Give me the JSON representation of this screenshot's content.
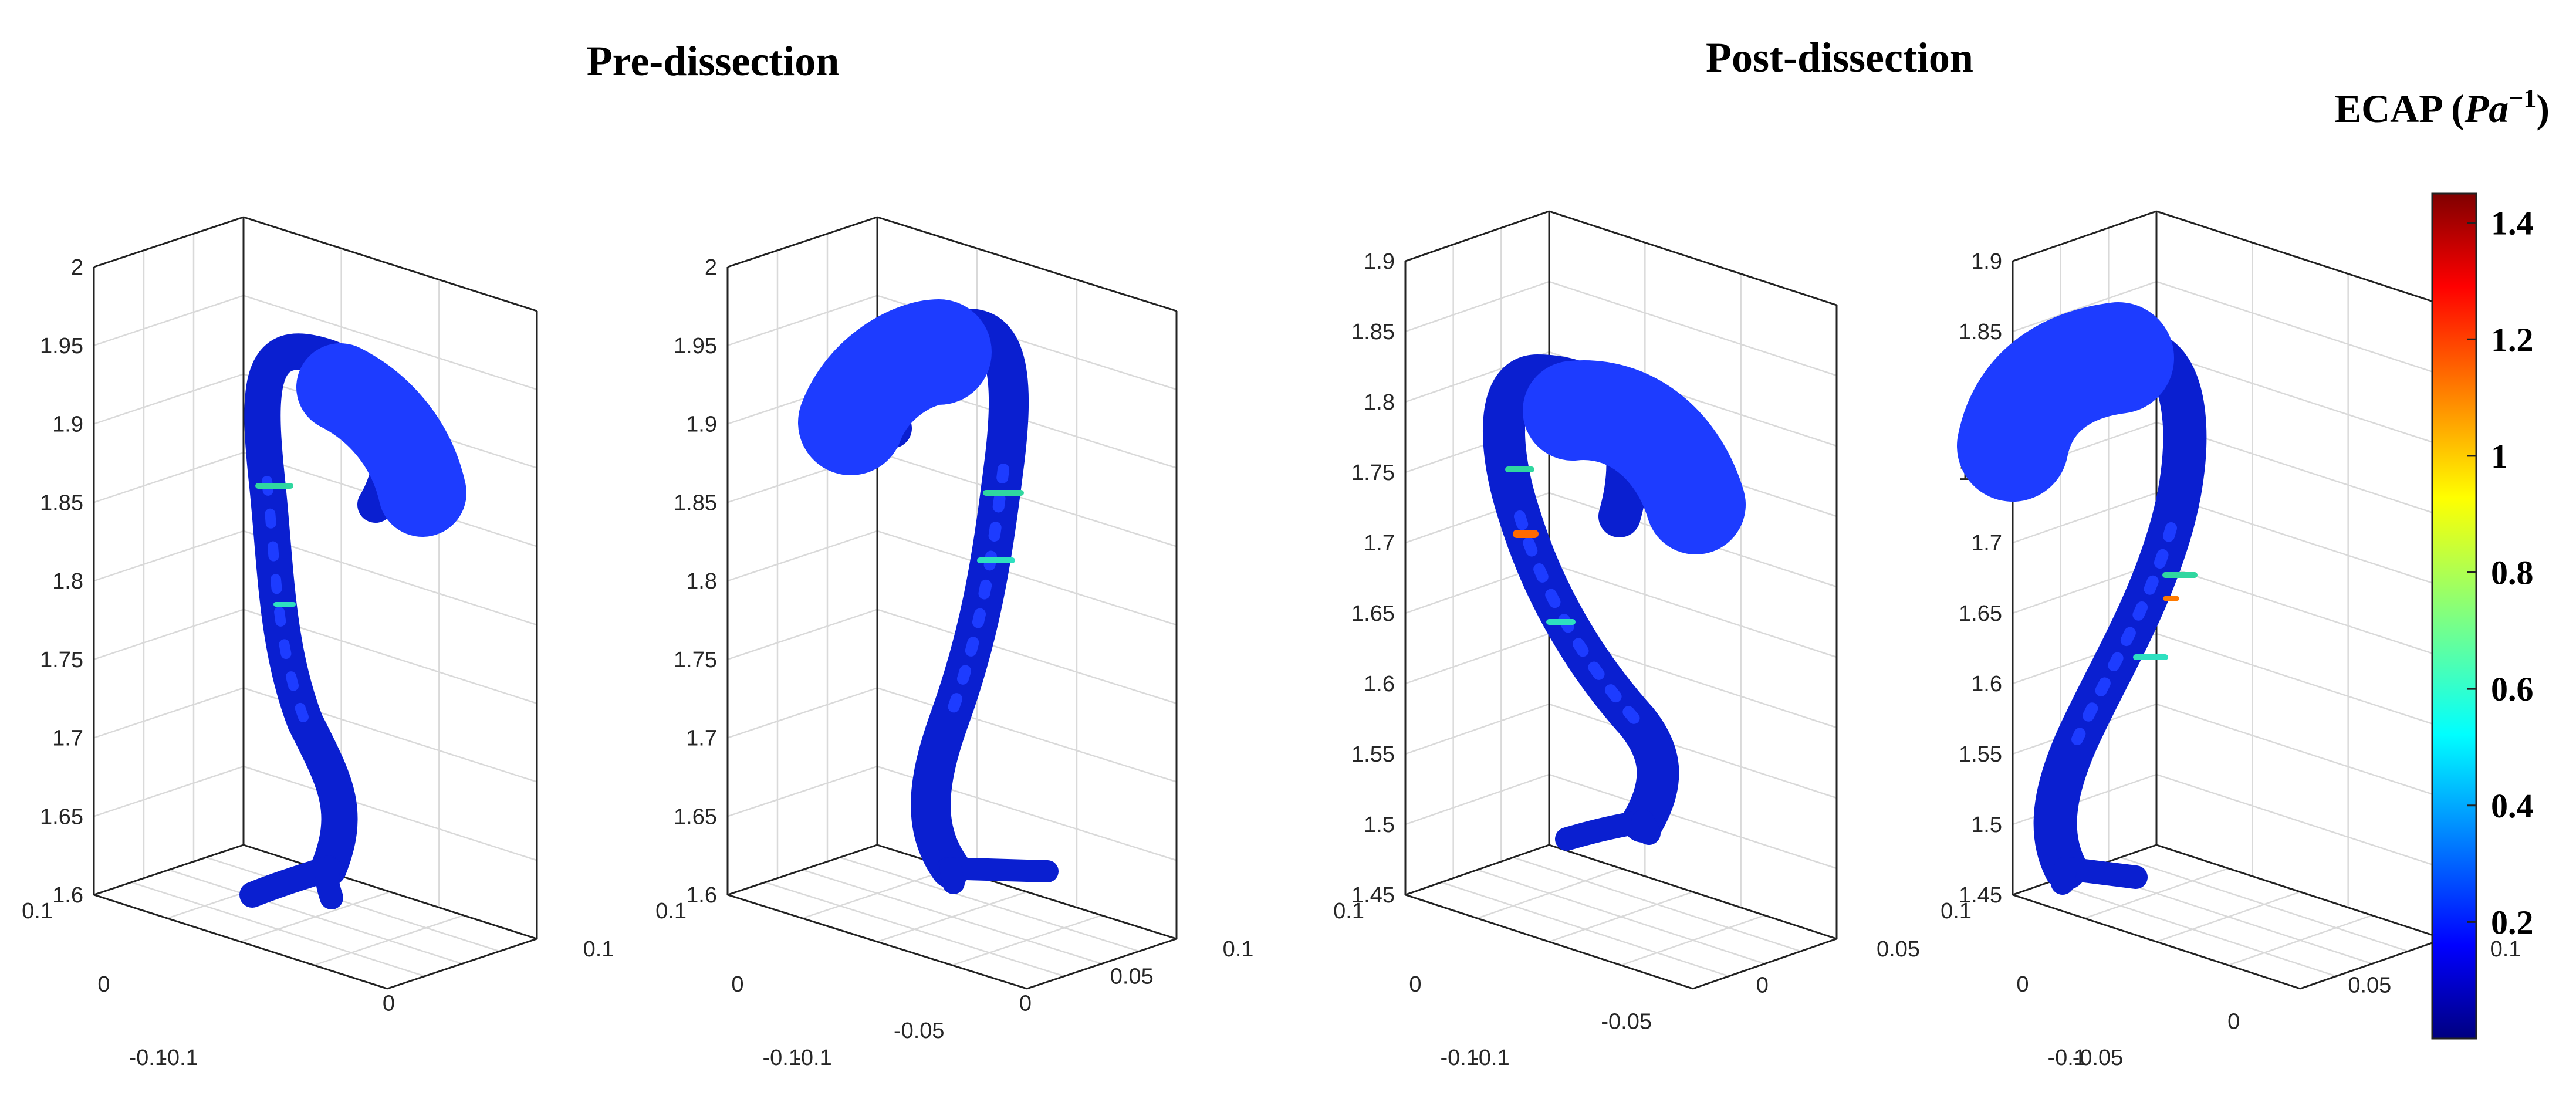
{
  "figure": {
    "titles": {
      "pre": "Pre-dissection",
      "post": "Post-dissection"
    },
    "panels": [
      {
        "z_ticks": [
          "2",
          "1.95",
          "1.9",
          "1.85",
          "1.8",
          "1.75",
          "1.7",
          "1.65",
          "1.6"
        ],
        "y_ticks": [
          "0.1",
          "0",
          "-0.1"
        ],
        "x_ticks": [
          "-0.1",
          "0",
          "0.1"
        ]
      },
      {
        "z_ticks": [
          "2",
          "1.95",
          "1.9",
          "1.85",
          "1.8",
          "1.75",
          "1.7",
          "1.65",
          "1.6"
        ],
        "y_ticks": [
          "0.1",
          "0",
          "-0.1"
        ],
        "x_ticks": [
          "-0.1",
          "-0.05",
          "0",
          "0.05",
          "0.1"
        ]
      },
      {
        "z_ticks": [
          "1.9",
          "1.85",
          "1.8",
          "1.75",
          "1.7",
          "1.65",
          "1.6",
          "1.55",
          "1.5",
          "1.45"
        ],
        "y_ticks": [
          "0.1",
          "0",
          "-0.1"
        ],
        "x_ticks": [
          "-0.1",
          "-0.05",
          "0",
          "0.05"
        ]
      },
      {
        "z_ticks": [
          "1.9",
          "1.85",
          "1.8",
          "1.75",
          "1.7",
          "1.65",
          "1.6",
          "1.55",
          "1.5",
          "1.45"
        ],
        "y_ticks": [
          "0.1",
          "0",
          "-0.1"
        ],
        "x_ticks": [
          "-0.05",
          "0",
          "0.05",
          "0.1"
        ]
      }
    ],
    "colorbar": {
      "title_prefix": "ECAP (",
      "title_var": "Pa",
      "title_exp": "−1",
      "title_suffix": ")",
      "ticks": [
        "1.4",
        "1.2",
        "1",
        "0.8",
        "0.6",
        "0.4",
        "0.2"
      ],
      "colors": [
        "#800000",
        "#ff0000",
        "#ff8000",
        "#ffff00",
        "#80ff80",
        "#00ffff",
        "#0080ff",
        "#0000ff",
        "#000080"
      ]
    }
  }
}
